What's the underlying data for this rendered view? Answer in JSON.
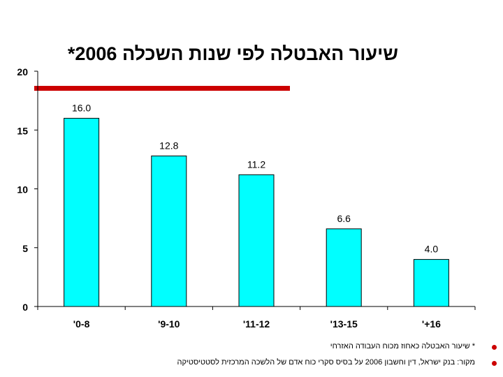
{
  "chart_data": {
    "type": "bar",
    "title": "שיעור האבטלה לפי שנות השכלה 2006*",
    "categories": [
      "0-8'",
      "9-10'",
      "11-12'",
      "13-15'",
      "16+'"
    ],
    "category_labels": [
      "'0-8",
      "'9-10",
      "'11-12",
      "'13-15",
      "'+16"
    ],
    "values": [
      16.0,
      12.8,
      11.2,
      6.6,
      4.0
    ],
    "value_labels": [
      "16.0",
      "12.8",
      "11.2",
      "6.6",
      "4.0"
    ],
    "ylim": [
      0,
      20
    ],
    "yticks": [
      0,
      5,
      10,
      15,
      20
    ],
    "xlabel": "",
    "ylabel": "",
    "bar_color": "#00ffff",
    "grid": false
  },
  "footnotes": [
    "* שיעור האבטלה כאחוז מכוח העבודה האזרחי",
    "מקור: בנק ישראל, דין וחשבון 2006 על בסיס סקרי כוח אדם של הלשכה המרכזית לסטטיסטיקה"
  ],
  "accent_color": "#cc0000"
}
